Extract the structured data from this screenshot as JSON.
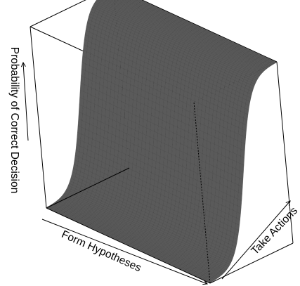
{
  "chart_data": {
    "type": "surface",
    "xlabel": "Form Hypotheses",
    "ylabel": "Take Actions",
    "zlabel": "Probability of Correct Decision",
    "surface": {
      "function": "logistic",
      "variable": "Take Actions",
      "midpoint": 0.5,
      "steepness": 12,
      "zlim": [
        0,
        1
      ]
    },
    "box": true,
    "surface_color": "#5a5a5a",
    "mesh_color": "#3c3c3c"
  }
}
